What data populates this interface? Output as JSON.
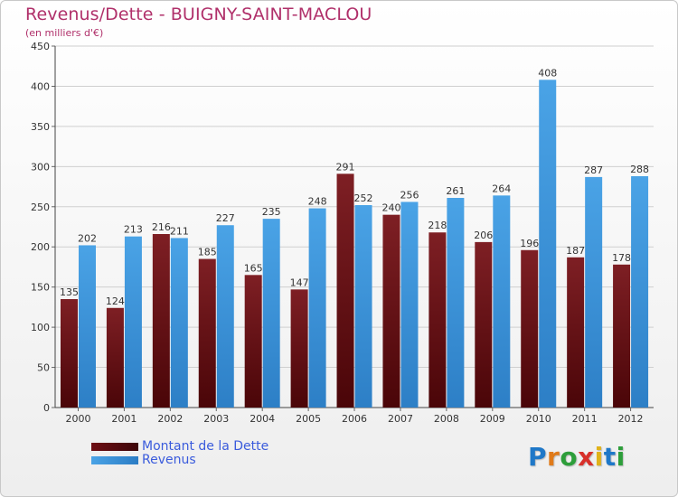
{
  "title": "Revenus/Dette - BUIGNY-SAINT-MACLOU",
  "subtitle": "(en milliers d'€)",
  "colors": {
    "dette": "#6e0f14",
    "revenus": "#4aa3e6",
    "title": "#b0306a",
    "legend_text": "#3a5bdc"
  },
  "legend": {
    "dette_label": "Montant de la Dette",
    "revenus_label": "Revenus"
  },
  "logo": {
    "text": "Proxiti",
    "letters": [
      "P",
      "r",
      "o",
      "x",
      "i",
      "t",
      "i"
    ],
    "colors": [
      "#1f78c8",
      "#e07b1a",
      "#2d9e3a",
      "#d8302a",
      "#e0b21a",
      "#1f78c8",
      "#2d9e3a"
    ]
  },
  "chart_data": {
    "type": "bar",
    "categories": [
      "2000",
      "2001",
      "2002",
      "2003",
      "2004",
      "2005",
      "2006",
      "2007",
      "2008",
      "2009",
      "2010",
      "2011",
      "2012"
    ],
    "series": [
      {
        "name": "Montant de la Dette",
        "values": [
          135,
          124,
          216,
          185,
          165,
          147,
          291,
          240,
          218,
          206,
          196,
          187,
          178
        ]
      },
      {
        "name": "Revenus",
        "values": [
          202,
          213,
          211,
          227,
          235,
          248,
          252,
          256,
          261,
          264,
          408,
          287,
          288
        ]
      }
    ],
    "ylim": [
      0,
      450
    ],
    "yticks": [
      0,
      50,
      100,
      150,
      200,
      250,
      300,
      350,
      400,
      450
    ],
    "grid": true,
    "legend_position": "bottom-left"
  }
}
